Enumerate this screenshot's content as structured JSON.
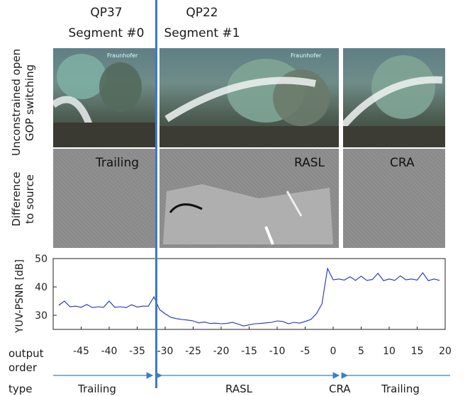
{
  "headers": {
    "seg0_qp": "QP37",
    "seg0_name": "Segment #0",
    "seg1_qp": "QP22",
    "seg1_name": "Segment #1"
  },
  "row_labels": {
    "row1_line1": "Unconstrained open",
    "row1_line2": "GOP switching",
    "row2_line1": "Difference",
    "row2_line2": "to source"
  },
  "logo_text": "Fraunhofer",
  "diff_labels": {
    "left": "Trailing",
    "middle": "RASL",
    "right": "CRA"
  },
  "bottom_labels": {
    "output_line1": "output",
    "output_line2": "order",
    "type": "type",
    "seg_trailing_left": "Trailing",
    "seg_rasl": "RASL",
    "seg_cra": "CRA",
    "seg_trailing_right": "Trailing"
  },
  "colors": {
    "line": "#1f2fbf",
    "arrow": "#3b7fc4",
    "switch": "#3d79c9"
  },
  "chart_data": {
    "type": "line",
    "ylabel": "YUV-PSNR [dB]",
    "xlabel": "",
    "xlim": [
      -50,
      20
    ],
    "ylim": [
      25,
      50
    ],
    "xticks": [
      -45,
      -40,
      -35,
      -30,
      -25,
      -20,
      -15,
      -10,
      -5,
      0,
      5,
      10,
      15,
      20
    ],
    "yticks": [
      30,
      40,
      50
    ],
    "switch_at": -32,
    "series": [
      {
        "x": [
          -49,
          -48,
          -47,
          -46,
          -45,
          -44,
          -43,
          -42,
          -41,
          -40,
          -39,
          -38,
          -37,
          -36,
          -35,
          -34,
          -33,
          -32,
          -31,
          -30,
          -29,
          -28,
          -27,
          -26,
          -25,
          -24,
          -23,
          -22,
          -21,
          -20,
          -19,
          -18,
          -17,
          -16,
          -15,
          -14,
          -13,
          -12,
          -11,
          -10,
          -9,
          -8,
          -7,
          -6,
          -5,
          -4,
          -3,
          -2,
          -1,
          0,
          1,
          2,
          3,
          4,
          5,
          6,
          7,
          8,
          9,
          10,
          11,
          12,
          13,
          14,
          15,
          16,
          17,
          18,
          19
        ],
        "y": [
          33.5,
          35,
          33,
          33.2,
          32.8,
          33.8,
          32.7,
          33,
          32.8,
          35,
          32.8,
          33,
          32.7,
          33.7,
          32.9,
          33.2,
          33.2,
          36.5,
          32,
          30.5,
          29.3,
          28.8,
          28.5,
          28.3,
          28,
          27.3,
          27.6,
          27.1,
          27.2,
          27,
          27.1,
          27.5,
          26.9,
          26.2,
          26.6,
          27,
          27.1,
          27.3,
          27.5,
          28,
          27.8,
          27,
          27.5,
          27.2,
          27.8,
          28.5,
          30.5,
          34,
          46.5,
          42.5,
          42.8,
          42.4,
          43.6,
          42.3,
          43.8,
          42.3,
          42.6,
          44.8,
          42.2,
          42.8,
          42.3,
          43.9,
          42.5,
          42.8,
          42.4,
          45,
          42.2,
          42.8,
          42.3
        ]
      }
    ]
  }
}
